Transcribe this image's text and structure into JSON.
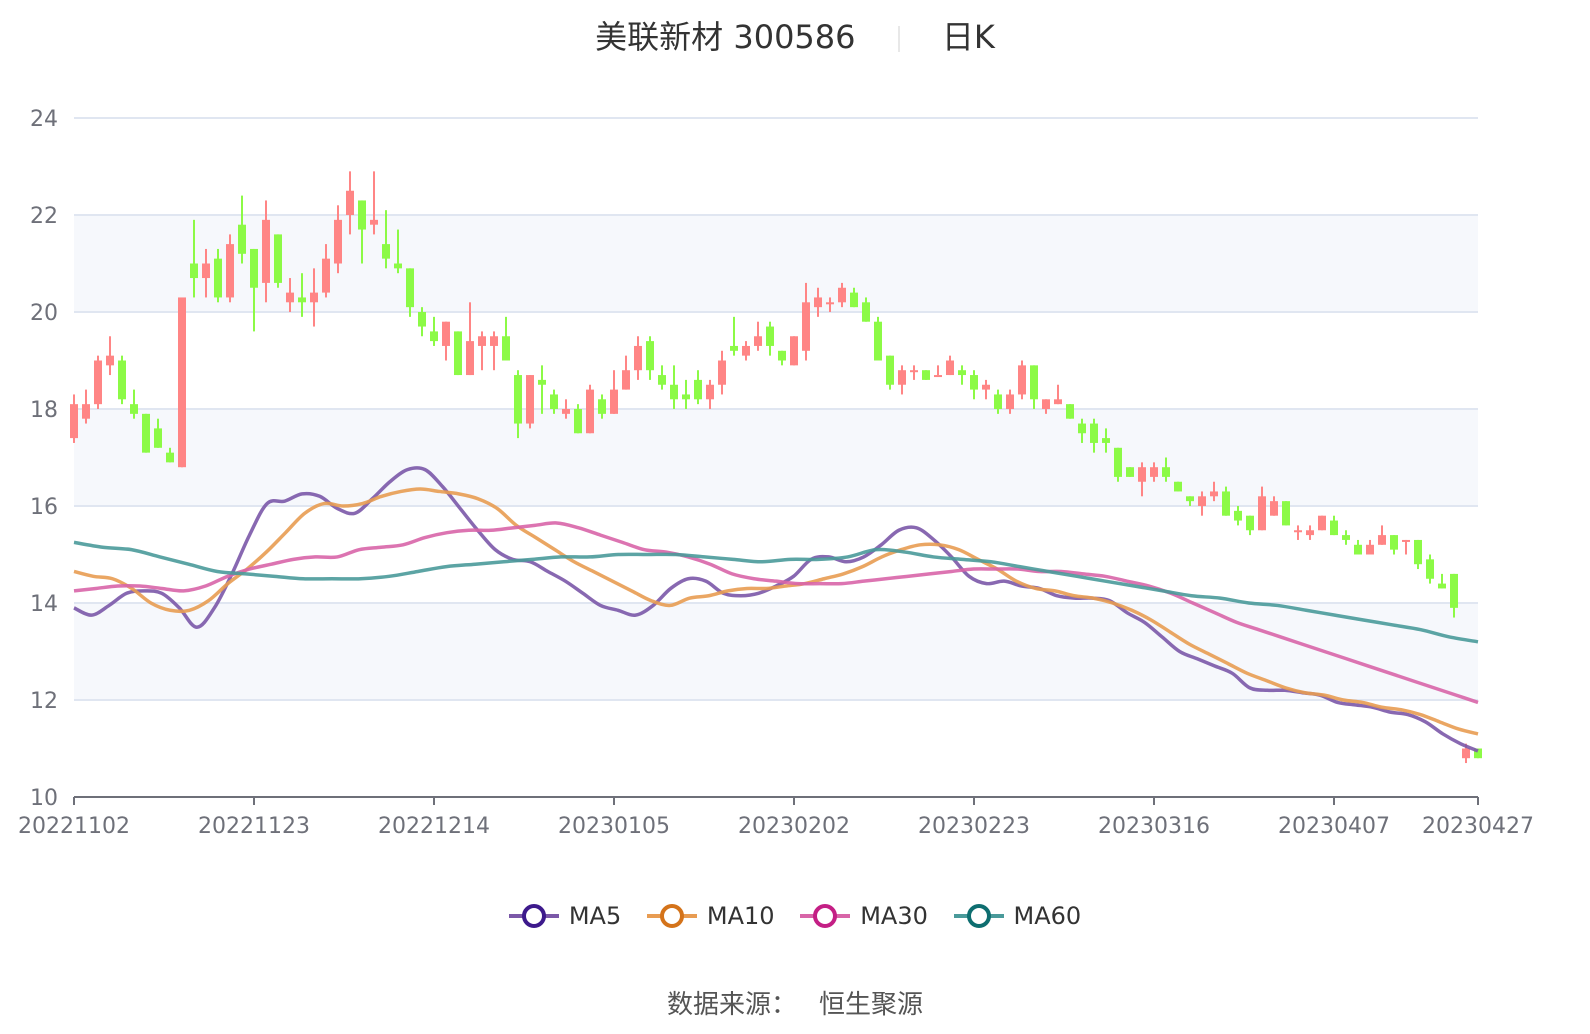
{
  "header": {
    "stock_name": "美联新材",
    "stock_code": "300586",
    "period": "日K"
  },
  "source": {
    "label": "数据来源：",
    "value": "恒生聚源"
  },
  "legend": [
    {
      "name": "MA5",
      "color": "#7b58a8",
      "marker_color": "#3d1a8c"
    },
    {
      "name": "MA10",
      "color": "#e89c52",
      "marker_color": "#d4731a"
    },
    {
      "name": "MA30",
      "color": "#d865a8",
      "marker_color": "#c41f85"
    },
    {
      "name": "MA60",
      "color": "#4a9a9a",
      "marker_color": "#0e6e70"
    }
  ],
  "colors": {
    "up": "#ff8585",
    "down": "#8cfa46",
    "grid": "#e0e6f1",
    "band": "#f6f8fc",
    "axis": "#6e7079",
    "text": "#6e7079"
  },
  "chart_data": {
    "type": "candlestick",
    "title": "美联新材 300586 日K",
    "xlabel": "",
    "ylabel": "",
    "ylim": [
      10,
      24
    ],
    "yticks": [
      10,
      12,
      14,
      16,
      18,
      20,
      22,
      24
    ],
    "xtick_labels": [
      "20221102",
      "20221123",
      "20221214",
      "20230105",
      "20230202",
      "20230223",
      "20230316",
      "20230407",
      "20230427"
    ],
    "xtick_index": [
      0,
      15,
      30,
      45,
      60,
      75,
      90,
      105,
      117
    ],
    "grid": true,
    "legend_position": "bottom",
    "candles": [
      {
        "o": 17.4,
        "c": 18.1,
        "h": 18.3,
        "l": 17.3
      },
      {
        "o": 17.8,
        "c": 18.1,
        "h": 18.4,
        "l": 17.7
      },
      {
        "o": 18.1,
        "c": 19.0,
        "h": 19.1,
        "l": 18.0
      },
      {
        "o": 18.9,
        "c": 19.1,
        "h": 19.5,
        "l": 18.7
      },
      {
        "o": 19.0,
        "c": 18.2,
        "h": 19.1,
        "l": 18.1
      },
      {
        "o": 18.1,
        "c": 17.9,
        "h": 18.4,
        "l": 17.8
      },
      {
        "o": 17.9,
        "c": 17.1,
        "h": 17.9,
        "l": 17.1
      },
      {
        "o": 17.6,
        "c": 17.2,
        "h": 17.8,
        "l": 17.2
      },
      {
        "o": 17.1,
        "c": 16.9,
        "h": 17.2,
        "l": 16.9
      },
      {
        "o": 16.8,
        "c": 20.3,
        "h": 20.3,
        "l": 16.8
      },
      {
        "o": 21.0,
        "c": 20.7,
        "h": 21.9,
        "l": 20.3
      },
      {
        "o": 20.7,
        "c": 21.0,
        "h": 21.3,
        "l": 20.3
      },
      {
        "o": 21.1,
        "c": 20.3,
        "h": 21.3,
        "l": 20.2
      },
      {
        "o": 20.3,
        "c": 21.4,
        "h": 21.6,
        "l": 20.2
      },
      {
        "o": 21.8,
        "c": 21.2,
        "h": 22.4,
        "l": 21.0
      },
      {
        "o": 21.3,
        "c": 20.5,
        "h": 21.3,
        "l": 19.6
      },
      {
        "o": 20.6,
        "c": 21.9,
        "h": 22.3,
        "l": 20.2
      },
      {
        "o": 21.6,
        "c": 20.6,
        "h": 21.6,
        "l": 20.5
      },
      {
        "o": 20.2,
        "c": 20.4,
        "h": 20.7,
        "l": 20.0
      },
      {
        "o": 20.3,
        "c": 20.2,
        "h": 20.8,
        "l": 19.9
      },
      {
        "o": 20.2,
        "c": 20.4,
        "h": 20.9,
        "l": 19.7
      },
      {
        "o": 20.4,
        "c": 21.1,
        "h": 21.4,
        "l": 20.3
      },
      {
        "o": 21.0,
        "c": 21.9,
        "h": 22.2,
        "l": 20.8
      },
      {
        "o": 22.0,
        "c": 22.5,
        "h": 22.9,
        "l": 21.6
      },
      {
        "o": 22.3,
        "c": 21.7,
        "h": 22.3,
        "l": 21.0
      },
      {
        "o": 21.8,
        "c": 21.9,
        "h": 22.9,
        "l": 21.6
      },
      {
        "o": 21.4,
        "c": 21.1,
        "h": 22.1,
        "l": 20.9
      },
      {
        "o": 21.0,
        "c": 20.9,
        "h": 21.7,
        "l": 20.8
      },
      {
        "o": 20.9,
        "c": 20.1,
        "h": 20.9,
        "l": 19.9
      },
      {
        "o": 20.0,
        "c": 19.7,
        "h": 20.1,
        "l": 19.5
      },
      {
        "o": 19.6,
        "c": 19.4,
        "h": 19.9,
        "l": 19.3
      },
      {
        "o": 19.3,
        "c": 19.8,
        "h": 19.8,
        "l": 19.0
      },
      {
        "o": 19.6,
        "c": 18.7,
        "h": 19.6,
        "l": 18.7
      },
      {
        "o": 18.7,
        "c": 19.4,
        "h": 20.2,
        "l": 18.7
      },
      {
        "o": 19.3,
        "c": 19.5,
        "h": 19.6,
        "l": 18.8
      },
      {
        "o": 19.3,
        "c": 19.5,
        "h": 19.6,
        "l": 18.8
      },
      {
        "o": 19.5,
        "c": 19.0,
        "h": 19.9,
        "l": 19.0
      },
      {
        "o": 18.7,
        "c": 17.7,
        "h": 18.8,
        "l": 17.4
      },
      {
        "o": 17.7,
        "c": 18.7,
        "h": 18.7,
        "l": 17.6
      },
      {
        "o": 18.6,
        "c": 18.5,
        "h": 18.9,
        "l": 17.9
      },
      {
        "o": 18.3,
        "c": 18.0,
        "h": 18.4,
        "l": 17.9
      },
      {
        "o": 17.9,
        "c": 18.0,
        "h": 18.2,
        "l": 17.8
      },
      {
        "o": 18.0,
        "c": 17.5,
        "h": 18.1,
        "l": 17.5
      },
      {
        "o": 17.5,
        "c": 18.4,
        "h": 18.5,
        "l": 17.5
      },
      {
        "o": 18.2,
        "c": 17.9,
        "h": 18.3,
        "l": 17.8
      },
      {
        "o": 17.9,
        "c": 18.4,
        "h": 18.8,
        "l": 17.9
      },
      {
        "o": 18.4,
        "c": 18.8,
        "h": 19.1,
        "l": 18.4
      },
      {
        "o": 18.8,
        "c": 19.3,
        "h": 19.5,
        "l": 18.6
      },
      {
        "o": 19.4,
        "c": 18.8,
        "h": 19.5,
        "l": 18.6
      },
      {
        "o": 18.7,
        "c": 18.5,
        "h": 18.9,
        "l": 18.4
      },
      {
        "o": 18.5,
        "c": 18.2,
        "h": 18.9,
        "l": 18.0
      },
      {
        "o": 18.3,
        "c": 18.2,
        "h": 18.6,
        "l": 18.0
      },
      {
        "o": 18.6,
        "c": 18.2,
        "h": 18.8,
        "l": 18.1
      },
      {
        "o": 18.2,
        "c": 18.5,
        "h": 18.6,
        "l": 18.0
      },
      {
        "o": 18.5,
        "c": 19.0,
        "h": 19.2,
        "l": 18.3
      },
      {
        "o": 19.3,
        "c": 19.2,
        "h": 19.9,
        "l": 19.1
      },
      {
        "o": 19.1,
        "c": 19.3,
        "h": 19.4,
        "l": 19.0
      },
      {
        "o": 19.3,
        "c": 19.5,
        "h": 19.8,
        "l": 19.2
      },
      {
        "o": 19.7,
        "c": 19.3,
        "h": 19.8,
        "l": 19.1
      },
      {
        "o": 19.2,
        "c": 19.0,
        "h": 19.2,
        "l": 18.9
      },
      {
        "o": 18.9,
        "c": 19.5,
        "h": 19.5,
        "l": 18.9
      },
      {
        "o": 19.2,
        "c": 20.2,
        "h": 20.6,
        "l": 19.0
      },
      {
        "o": 20.1,
        "c": 20.3,
        "h": 20.5,
        "l": 19.9
      },
      {
        "o": 20.2,
        "c": 20.2,
        "h": 20.3,
        "l": 20.0
      },
      {
        "o": 20.2,
        "c": 20.5,
        "h": 20.6,
        "l": 20.1
      },
      {
        "o": 20.4,
        "c": 20.1,
        "h": 20.5,
        "l": 20.1
      },
      {
        "o": 20.2,
        "c": 19.8,
        "h": 20.3,
        "l": 19.8
      },
      {
        "o": 19.8,
        "c": 19.0,
        "h": 19.9,
        "l": 19.0
      },
      {
        "o": 19.1,
        "c": 18.5,
        "h": 19.1,
        "l": 18.4
      },
      {
        "o": 18.5,
        "c": 18.8,
        "h": 18.9,
        "l": 18.3
      },
      {
        "o": 18.8,
        "c": 18.8,
        "h": 18.9,
        "l": 18.6
      },
      {
        "o": 18.8,
        "c": 18.6,
        "h": 18.8,
        "l": 18.6
      },
      {
        "o": 18.7,
        "c": 18.7,
        "h": 18.9,
        "l": 18.7
      },
      {
        "o": 18.7,
        "c": 19.0,
        "h": 19.1,
        "l": 18.7
      },
      {
        "o": 18.8,
        "c": 18.7,
        "h": 18.9,
        "l": 18.5
      },
      {
        "o": 18.7,
        "c": 18.4,
        "h": 18.8,
        "l": 18.2
      },
      {
        "o": 18.4,
        "c": 18.5,
        "h": 18.6,
        "l": 18.2
      },
      {
        "o": 18.3,
        "c": 18.0,
        "h": 18.4,
        "l": 17.9
      },
      {
        "o": 18.0,
        "c": 18.3,
        "h": 18.4,
        "l": 17.9
      },
      {
        "o": 18.3,
        "c": 18.9,
        "h": 19.0,
        "l": 18.2
      },
      {
        "o": 18.9,
        "c": 18.2,
        "h": 18.9,
        "l": 18.0
      },
      {
        "o": 18.0,
        "c": 18.2,
        "h": 18.2,
        "l": 17.9
      },
      {
        "o": 18.1,
        "c": 18.2,
        "h": 18.5,
        "l": 18.1
      },
      {
        "o": 18.1,
        "c": 17.8,
        "h": 18.1,
        "l": 17.8
      },
      {
        "o": 17.7,
        "c": 17.5,
        "h": 17.8,
        "l": 17.3
      },
      {
        "o": 17.7,
        "c": 17.3,
        "h": 17.8,
        "l": 17.1
      },
      {
        "o": 17.4,
        "c": 17.3,
        "h": 17.6,
        "l": 17.1
      },
      {
        "o": 17.2,
        "c": 16.6,
        "h": 17.2,
        "l": 16.5
      },
      {
        "o": 16.8,
        "c": 16.6,
        "h": 16.8,
        "l": 16.6
      },
      {
        "o": 16.5,
        "c": 16.8,
        "h": 16.9,
        "l": 16.2
      },
      {
        "o": 16.6,
        "c": 16.8,
        "h": 16.9,
        "l": 16.5
      },
      {
        "o": 16.8,
        "c": 16.6,
        "h": 17.0,
        "l": 16.5
      },
      {
        "o": 16.5,
        "c": 16.3,
        "h": 16.5,
        "l": 16.3
      },
      {
        "o": 16.2,
        "c": 16.1,
        "h": 16.2,
        "l": 16.0
      },
      {
        "o": 16.0,
        "c": 16.2,
        "h": 16.3,
        "l": 15.8
      },
      {
        "o": 16.2,
        "c": 16.3,
        "h": 16.5,
        "l": 16.1
      },
      {
        "o": 16.3,
        "c": 15.8,
        "h": 16.4,
        "l": 15.8
      },
      {
        "o": 15.9,
        "c": 15.7,
        "h": 16.0,
        "l": 15.6
      },
      {
        "o": 15.8,
        "c": 15.5,
        "h": 15.8,
        "l": 15.4
      },
      {
        "o": 15.5,
        "c": 16.2,
        "h": 16.4,
        "l": 15.5
      },
      {
        "o": 15.8,
        "c": 16.1,
        "h": 16.2,
        "l": 15.8
      },
      {
        "o": 16.1,
        "c": 15.6,
        "h": 16.1,
        "l": 15.6
      },
      {
        "o": 15.5,
        "c": 15.5,
        "h": 15.6,
        "l": 15.3
      },
      {
        "o": 15.4,
        "c": 15.5,
        "h": 15.6,
        "l": 15.3
      },
      {
        "o": 15.5,
        "c": 15.8,
        "h": 15.8,
        "l": 15.5
      },
      {
        "o": 15.7,
        "c": 15.4,
        "h": 15.8,
        "l": 15.4
      },
      {
        "o": 15.4,
        "c": 15.3,
        "h": 15.5,
        "l": 15.2
      },
      {
        "o": 15.2,
        "c": 15.0,
        "h": 15.3,
        "l": 15.0
      },
      {
        "o": 15.0,
        "c": 15.2,
        "h": 15.3,
        "l": 15.0
      },
      {
        "o": 15.2,
        "c": 15.4,
        "h": 15.6,
        "l": 15.2
      },
      {
        "o": 15.4,
        "c": 15.1,
        "h": 15.4,
        "l": 15.0
      },
      {
        "o": 15.3,
        "c": 15.3,
        "h": 15.3,
        "l": 15.0
      },
      {
        "o": 15.3,
        "c": 14.8,
        "h": 15.3,
        "l": 14.7
      },
      {
        "o": 14.9,
        "c": 14.5,
        "h": 15.0,
        "l": 14.4
      },
      {
        "o": 14.4,
        "c": 14.3,
        "h": 14.6,
        "l": 14.3
      },
      {
        "o": 14.6,
        "c": 13.9,
        "h": 14.6,
        "l": 13.7
      },
      {
        "o": 10.8,
        "c": 11.0,
        "h": 11.1,
        "l": 10.7
      },
      {
        "o": 11.0,
        "c": 10.8,
        "h": 11.0,
        "l": 10.8
      }
    ],
    "series": [
      {
        "name": "MA5",
        "color": "#7b58a8",
        "values": [
          13.9,
          13.75,
          13.95,
          14.2,
          14.25,
          14.2,
          13.9,
          13.5,
          13.9,
          14.6,
          15.4,
          16.05,
          16.1,
          16.25,
          16.2,
          15.95,
          15.85,
          16.15,
          16.5,
          16.75,
          16.75,
          16.4,
          15.95,
          15.5,
          15.1,
          14.9,
          14.85,
          14.65,
          14.45,
          14.2,
          13.95,
          13.85,
          13.75,
          13.95,
          14.3,
          14.5,
          14.45,
          14.2,
          14.15,
          14.2,
          14.35,
          14.55,
          14.9,
          14.95,
          14.85,
          14.95,
          15.2,
          15.5,
          15.55,
          15.3,
          14.95,
          14.55,
          14.4,
          14.45,
          14.35,
          14.3,
          14.15,
          14.1,
          14.1,
          14.05,
          13.8,
          13.6,
          13.3,
          13.0,
          12.85,
          12.7,
          12.55,
          12.25,
          12.2,
          12.2,
          12.15,
          12.1,
          11.95,
          11.9,
          11.85,
          11.75,
          11.7,
          11.55,
          11.3,
          11.1,
          10.95
        ]
      },
      {
        "name": "MA10",
        "color": "#e89c52",
        "values": [
          14.65,
          14.55,
          14.5,
          14.3,
          14.0,
          13.85,
          13.85,
          14.05,
          14.4,
          14.7,
          15.05,
          15.45,
          15.85,
          16.05,
          16.0,
          16.05,
          16.2,
          16.3,
          16.35,
          16.3,
          16.25,
          16.15,
          15.95,
          15.6,
          15.35,
          15.1,
          14.85,
          14.65,
          14.45,
          14.25,
          14.05,
          13.95,
          14.1,
          14.15,
          14.25,
          14.3,
          14.3,
          14.35,
          14.4,
          14.5,
          14.6,
          14.75,
          14.95,
          15.1,
          15.2,
          15.2,
          15.1,
          14.9,
          14.7,
          14.45,
          14.3,
          14.25,
          14.15,
          14.1,
          14.0,
          13.85,
          13.65,
          13.4,
          13.15,
          12.95,
          12.75,
          12.55,
          12.4,
          12.25,
          12.15,
          12.1,
          12.0,
          11.95,
          11.85,
          11.8,
          11.7,
          11.55,
          11.4,
          11.3
        ]
      },
      {
        "name": "MA30",
        "color": "#d865a8",
        "values": [
          14.25,
          14.3,
          14.35,
          14.35,
          14.3,
          14.25,
          14.35,
          14.55,
          14.7,
          14.8,
          14.9,
          14.95,
          14.95,
          15.1,
          15.15,
          15.2,
          15.35,
          15.45,
          15.5,
          15.5,
          15.55,
          15.6,
          15.65,
          15.55,
          15.4,
          15.25,
          15.1,
          15.05,
          14.95,
          14.8,
          14.6,
          14.5,
          14.45,
          14.4,
          14.4,
          14.4,
          14.45,
          14.5,
          14.55,
          14.6,
          14.65,
          14.7,
          14.7,
          14.7,
          14.65,
          14.65,
          14.6,
          14.55,
          14.45,
          14.35,
          14.2,
          14.0,
          13.8,
          13.6,
          13.45,
          13.3,
          13.15,
          13.0,
          12.85,
          12.7,
          12.55,
          12.4,
          12.25,
          12.1,
          11.95
        ]
      },
      {
        "name": "MA60",
        "color": "#4a9a9a",
        "values": [
          15.25,
          15.15,
          15.1,
          14.95,
          14.8,
          14.65,
          14.6,
          14.55,
          14.5,
          14.5,
          14.5,
          14.55,
          14.65,
          14.75,
          14.8,
          14.85,
          14.9,
          14.95,
          14.95,
          15.0,
          15.0,
          15.0,
          14.95,
          14.9,
          14.85,
          14.9,
          14.9,
          14.95,
          15.1,
          15.05,
          14.95,
          14.9,
          14.85,
          14.75,
          14.65,
          14.55,
          14.45,
          14.35,
          14.25,
          14.15,
          14.1,
          14.0,
          13.95,
          13.85,
          13.75,
          13.65,
          13.55,
          13.45,
          13.3,
          13.2
        ]
      }
    ]
  }
}
